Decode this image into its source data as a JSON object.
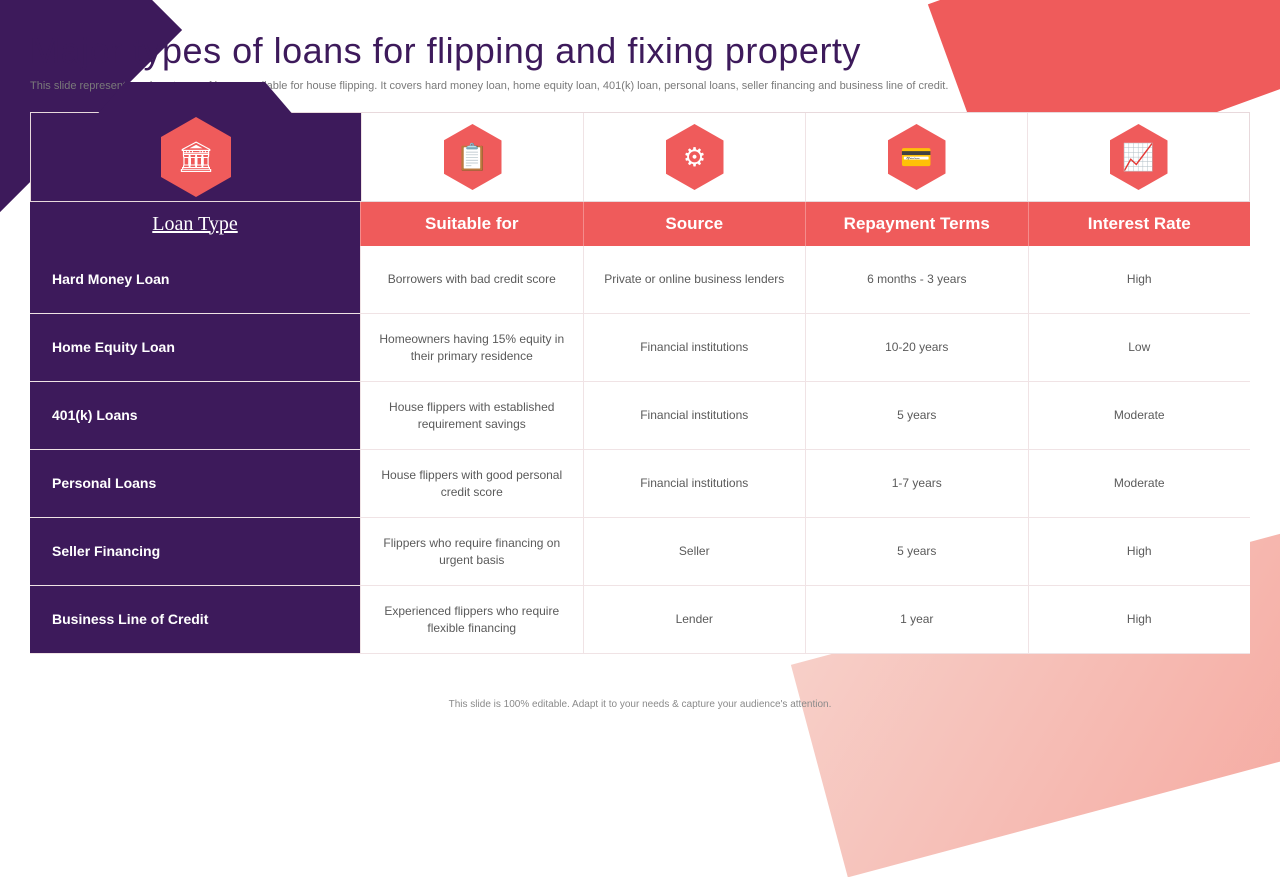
{
  "title": "Major types of loans for flipping and fixing property",
  "subtitle": "This slide represents various types of loans available for house flipping. It covers hard money loan, home equity loan, 401(k) loan, personal loans, seller financing and business line of credit.",
  "footer": "This slide is 100% editable. Adapt it to your needs & capture your audience's attention.",
  "colors": {
    "primary_purple": "#3d1a5b",
    "accent_red": "#ef5b5b",
    "bg_peach": "#f5a9a0",
    "text_gray": "#5a5a5a",
    "border": "#f0e3e5"
  },
  "icons": [
    "bank-icon",
    "clipboard-icon",
    "network-icon",
    "payment-icon",
    "rate-icon"
  ],
  "icon_glyphs": [
    "🏛",
    "📋",
    "⚙",
    "💳",
    "📈"
  ],
  "table": {
    "columns": [
      "Loan Type",
      "Suitable for",
      "Source",
      "Repayment Terms",
      "Interest Rate"
    ],
    "rows": [
      {
        "type": "Hard Money Loan",
        "suitable": "Borrowers with bad credit score",
        "source": "Private or online business lenders",
        "terms": "6 months - 3 years",
        "rate": "High"
      },
      {
        "type": "Home Equity Loan",
        "suitable": "Homeowners having 15% equity in their primary residence",
        "source": "Financial institutions",
        "terms": "10-20 years",
        "rate": "Low"
      },
      {
        "type": "401(k) Loans",
        "suitable": "House flippers with established requirement savings",
        "source": "Financial institutions",
        "terms": "5 years",
        "rate": "Moderate"
      },
      {
        "type": "Personal Loans",
        "suitable": "House flippers with good personal credit score",
        "source": "Financial institutions",
        "terms": "1-7 years",
        "rate": "Moderate"
      },
      {
        "type": "Seller Financing",
        "suitable": "Flippers who require financing on urgent basis",
        "source": "Seller",
        "terms": "5 years",
        "rate": "High"
      },
      {
        "type": "Business Line of Credit",
        "suitable": "Experienced flippers who require flexible financing",
        "source": "Lender",
        "terms": "1 year",
        "rate": "High"
      }
    ]
  }
}
